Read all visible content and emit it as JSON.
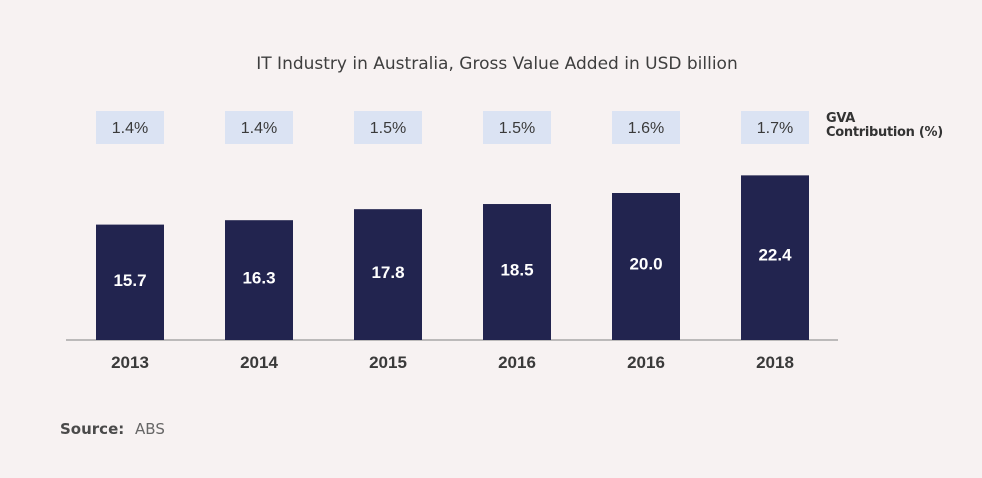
{
  "chart_data": {
    "type": "bar",
    "title": "IT Industry in Australia, Gross Value Added in USD billion",
    "categories": [
      "2013",
      "2014",
      "2015",
      "2016",
      "2016",
      "2018"
    ],
    "values": [
      15.7,
      16.3,
      17.8,
      18.5,
      20.0,
      22.4
    ],
    "value_labels": [
      "15.7",
      "16.3",
      "17.8",
      "18.5",
      "20.0",
      "22.4"
    ],
    "gva_contribution": [
      "1.4%",
      "1.4%",
      "1.5%",
      "1.5%",
      "1.6%",
      "1.7%"
    ],
    "gva_label_line1": "GVA",
    "gva_label_line2": "Contribution (%)",
    "xlabel": "",
    "ylabel": "",
    "grid": false,
    "colors": {
      "bar": "#22244f",
      "gva_box": "#dbe3f3",
      "axis": "#999999"
    }
  },
  "source": {
    "label": "Source:",
    "value": "ABS"
  }
}
